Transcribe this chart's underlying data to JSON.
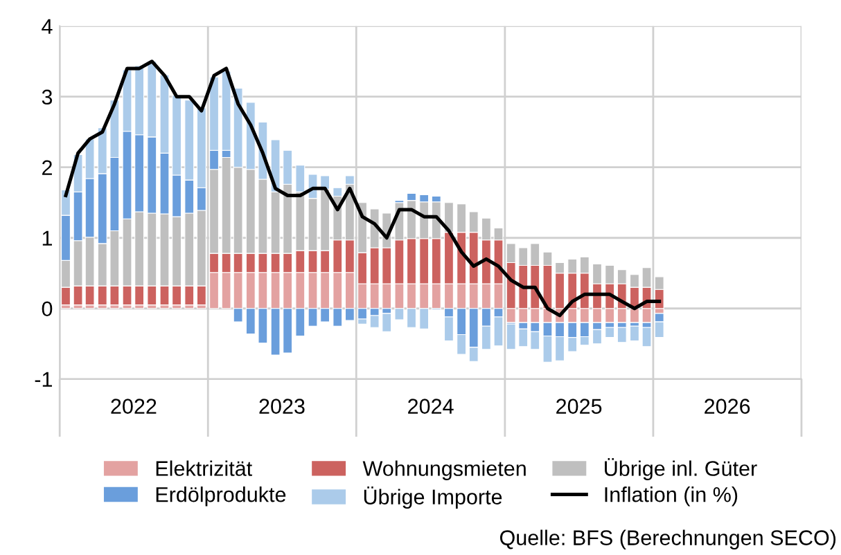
{
  "chart_data": {
    "type": "bar",
    "stacked": true,
    "x": [
      "2022-01-16",
      "2022-02-15",
      "2022-03-16",
      "2022-04-16",
      "2022-05-16",
      "2022-06-16",
      "2022-07-16",
      "2022-08-16",
      "2022-09-16",
      "2022-10-16",
      "2022-11-16",
      "2022-12-16",
      "2023-01-16",
      "2023-02-15",
      "2023-03-16",
      "2023-04-16",
      "2023-05-16",
      "2023-06-16",
      "2023-07-16",
      "2023-08-16",
      "2023-09-16",
      "2023-10-16",
      "2023-11-16",
      "2023-12-16",
      "2024-01-16",
      "2024-02-15",
      "2024-03-16",
      "2024-04-16",
      "2024-05-16",
      "2024-06-16",
      "2024-07-16",
      "2024-08-16",
      "2024-09-16",
      "2024-10-16",
      "2024-11-16",
      "2024-12-16",
      "2025-01-16",
      "2025-02-15",
      "2025-03-16",
      "2025-04-16",
      "2025-05-16",
      "2025-06-16",
      "2025-07-16",
      "2025-08-16",
      "2025-09-16",
      "2025-10-16",
      "2025-11-16",
      "2025-12-16",
      "2026-01-16"
    ],
    "series": [
      {
        "name": "Elektrizität",
        "color": "#e3a2a1",
        "values": [
          0.05,
          0.05,
          0.05,
          0.05,
          0.05,
          0.05,
          0.05,
          0.05,
          0.05,
          0.05,
          0.05,
          0.05,
          0.51,
          0.51,
          0.51,
          0.51,
          0.51,
          0.51,
          0.51,
          0.51,
          0.51,
          0.51,
          0.51,
          0.51,
          0.35,
          0.35,
          0.35,
          0.35,
          0.35,
          0.35,
          0.35,
          0.35,
          0.35,
          0.35,
          0.35,
          0.35,
          -0.2,
          -0.2,
          -0.2,
          -0.2,
          -0.2,
          -0.2,
          -0.2,
          -0.2,
          -0.2,
          -0.2,
          -0.2,
          -0.2,
          -0.07
        ]
      },
      {
        "name": "Wohnungsmieten",
        "color": "#cc625f",
        "values": [
          0.25,
          0.27,
          0.27,
          0.27,
          0.27,
          0.27,
          0.27,
          0.27,
          0.27,
          0.27,
          0.27,
          0.27,
          0.27,
          0.27,
          0.27,
          0.27,
          0.27,
          0.27,
          0.27,
          0.31,
          0.31,
          0.31,
          0.46,
          0.46,
          0.44,
          0.51,
          0.51,
          0.62,
          0.64,
          0.64,
          0.64,
          0.73,
          0.73,
          0.73,
          0.62,
          0.62,
          0.65,
          0.61,
          0.61,
          0.61,
          0.5,
          0.5,
          0.5,
          0.35,
          0.35,
          0.35,
          0.3,
          0.3,
          0.27
        ]
      },
      {
        "name": "Übrige inl. Güter",
        "color": "#bfbfbf",
        "values": [
          0.38,
          0.64,
          0.69,
          0.6,
          0.78,
          0.95,
          1.05,
          1.03,
          1.02,
          0.98,
          1.03,
          1.07,
          1.19,
          1.36,
          1.22,
          1.19,
          1.05,
          0.87,
          0.98,
          0.83,
          0.74,
          0.87,
          0.62,
          0.79,
          0.71,
          0.55,
          0.49,
          0.53,
          0.54,
          0.52,
          0.52,
          0.42,
          0.4,
          0.29,
          0.31,
          0.17,
          0.27,
          0.25,
          0.31,
          0.19,
          0.15,
          0.2,
          0.23,
          0.28,
          0.26,
          0.2,
          0.18,
          0.28,
          0.18
        ]
      },
      {
        "name": "Erdölprodukte",
        "color": "#6a9edc",
        "values": [
          0.64,
          0.69,
          0.83,
          0.99,
          1.04,
          1.24,
          1.09,
          1.08,
          0.86,
          0.59,
          0.47,
          0.32,
          0.27,
          0.1,
          -0.19,
          -0.36,
          -0.49,
          -0.66,
          -0.63,
          -0.39,
          -0.25,
          -0.19,
          -0.25,
          -0.17,
          -0.15,
          -0.1,
          -0.07,
          0.03,
          0.1,
          0.1,
          0.08,
          -0.12,
          -0.37,
          -0.55,
          -0.25,
          -0.12,
          -0.02,
          -0.09,
          -0.13,
          -0.19,
          -0.2,
          -0.21,
          -0.2,
          -0.1,
          -0.07,
          -0.07,
          -0.05,
          -0.07,
          -0.12
        ]
      },
      {
        "name": "Übrige Importe",
        "color": "#abcbea",
        "values": [
          0.36,
          0.53,
          0.56,
          0.65,
          0.81,
          0.87,
          0.98,
          1.07,
          1.11,
          1.13,
          1.13,
          1.13,
          1.04,
          1.12,
          1.12,
          0.95,
          0.81,
          0.74,
          0.48,
          0.38,
          0.34,
          0.19,
          0.12,
          0.12,
          -0.07,
          -0.17,
          -0.26,
          -0.16,
          -0.27,
          -0.29,
          -0.02,
          -0.34,
          -0.28,
          -0.2,
          -0.33,
          -0.41,
          -0.36,
          -0.25,
          -0.25,
          -0.37,
          -0.34,
          -0.2,
          -0.12,
          -0.2,
          -0.14,
          -0.21,
          -0.21,
          -0.27,
          -0.22
        ]
      },
      {
        "name": "Inflation (in %)",
        "type": "line",
        "color": "#000000",
        "values": [
          1.6,
          2.2,
          2.4,
          2.5,
          2.9,
          3.4,
          3.4,
          3.5,
          3.3,
          3.0,
          3.0,
          2.8,
          3.3,
          3.4,
          2.9,
          2.6,
          2.2,
          1.7,
          1.6,
          1.6,
          1.7,
          1.7,
          1.4,
          1.7,
          1.3,
          1.2,
          1.0,
          1.4,
          1.4,
          1.3,
          1.3,
          1.1,
          0.8,
          0.6,
          0.7,
          0.6,
          0.4,
          0.3,
          0.3,
          0.0,
          -0.1,
          0.1,
          0.2,
          0.2,
          0.2,
          0.1,
          0.0,
          0.1,
          0.1
        ]
      }
    ],
    "xlim": [
      "2022-01-01",
      "2027-01-01"
    ],
    "xticks": [
      {
        "value": "2022-01-01",
        "label": null
      },
      {
        "value": "2023-01-01",
        "label": null
      },
      {
        "value": "2024-01-01",
        "label": null
      },
      {
        "value": "2025-01-01",
        "label": null
      },
      {
        "value": "2026-01-01",
        "label": null
      },
      {
        "value": "2027-01-01",
        "label": null
      },
      {
        "value": "2022-07-02",
        "label": "2022"
      },
      {
        "value": "2023-07-02",
        "label": "2023"
      },
      {
        "value": "2024-07-02",
        "label": "2024"
      },
      {
        "value": "2025-07-02",
        "label": "2025"
      },
      {
        "value": "2026-07-02",
        "label": "2026"
      }
    ],
    "ylim": [
      -1,
      4
    ],
    "yticks": [
      -1,
      0,
      1,
      2,
      3,
      4
    ],
    "grid": true,
    "legend": "bottom",
    "annotations": [
      "Quelle: BFS (Berechnungen SECO)"
    ]
  }
}
